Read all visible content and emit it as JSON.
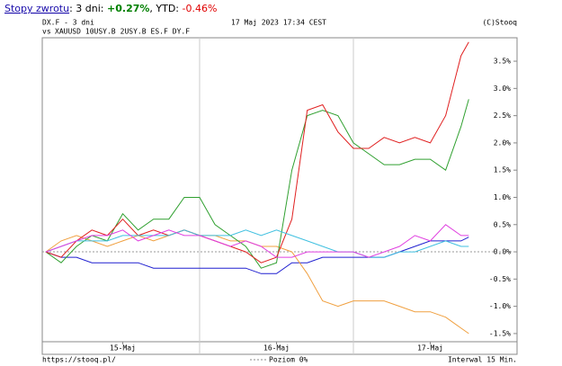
{
  "summary": {
    "link": "Stopy zwrotu",
    "period": ": 3 dni: ",
    "change": "+0.27%",
    "separator": ", YTD: ",
    "ytd": "-0.46%"
  },
  "chart_data": {
    "type": "line",
    "date": "17 Maj 2023 17:34 CEST",
    "source": "(C)Stooq",
    "versus": "vs",
    "footer_left": "https://stooq.pl/",
    "zero_line_label": "Poziom 0%",
    "footer_right": "Interwal 15 Min.",
    "x": [
      0,
      0.1,
      0.2,
      0.3,
      0.4,
      0.5,
      0.6,
      0.7,
      0.8,
      0.9,
      1.0,
      1.1,
      1.2,
      1.3,
      1.4,
      1.5,
      1.6,
      1.7,
      1.8,
      1.9,
      2.0,
      2.1,
      2.2,
      2.3,
      2.4,
      2.5,
      2.6,
      2.7,
      2.75
    ],
    "xlim": [
      -0.023,
      3.064
    ],
    "xticks": [
      {
        "value": 0.5,
        "label": "15-Maj"
      },
      {
        "value": 1.5,
        "label": "16-Maj"
      },
      {
        "value": 2.5,
        "label": "17-Maj"
      }
    ],
    "day_boundaries": [
      1,
      2
    ],
    "ylim": [
      -1.65,
      3.93
    ],
    "yticks": [
      {
        "value": 3.5,
        "label": "3.5%"
      },
      {
        "value": 3.0,
        "label": "3.0%"
      },
      {
        "value": 2.5,
        "label": "2.5%"
      },
      {
        "value": 2.0,
        "label": "2.0%"
      },
      {
        "value": 1.5,
        "label": "1.5%"
      },
      {
        "value": 1.0,
        "label": "1.0%"
      },
      {
        "value": 0.5,
        "label": "0.5%"
      },
      {
        "value": 0.0,
        "label": "0.0%"
      },
      {
        "value": -0.5,
        "label": "-0.5%"
      },
      {
        "value": -1.0,
        "label": "-1.0%"
      },
      {
        "value": -1.5,
        "label": "-1.5%"
      }
    ],
    "series": [
      {
        "name": "DX.F - 3 dni",
        "color": "#2020d0",
        "values": [
          0,
          -0.1,
          -0.1,
          -0.2,
          -0.2,
          -0.2,
          -0.2,
          -0.3,
          -0.3,
          -0.3,
          -0.3,
          -0.3,
          -0.3,
          -0.3,
          -0.4,
          -0.4,
          -0.2,
          -0.2,
          -0.1,
          -0.1,
          -0.1,
          -0.1,
          -0.1,
          0.0,
          0.1,
          0.2,
          0.2,
          0.2,
          0.27
        ]
      },
      {
        "name": "XAUUSD",
        "color": "#f0a040",
        "values": [
          0,
          0.2,
          0.3,
          0.2,
          0.1,
          0.2,
          0.3,
          0.2,
          0.3,
          0.4,
          0.3,
          0.3,
          0.2,
          0.2,
          0.1,
          0.1,
          0.0,
          -0.4,
          -0.9,
          -1.0,
          -0.9,
          -0.9,
          -0.9,
          -1.0,
          -1.1,
          -1.1,
          -1.2,
          -1.4,
          -1.5
        ]
      },
      {
        "name": "10USY.B",
        "color": "#30a030",
        "values": [
          0,
          -0.2,
          0.1,
          0.3,
          0.2,
          0.7,
          0.4,
          0.6,
          0.6,
          1.0,
          1.0,
          0.5,
          0.3,
          0.1,
          -0.3,
          -0.2,
          1.5,
          2.5,
          2.6,
          2.5,
          2.0,
          1.8,
          1.6,
          1.6,
          1.7,
          1.7,
          1.5,
          2.3,
          2.8
        ]
      },
      {
        "name": "2USY.B",
        "color": "#e02020",
        "values": [
          0,
          -0.1,
          0.2,
          0.4,
          0.3,
          0.6,
          0.3,
          0.4,
          0.3,
          0.4,
          0.3,
          0.2,
          0.1,
          0.0,
          -0.2,
          -0.1,
          0.6,
          2.6,
          2.7,
          2.2,
          1.9,
          1.9,
          2.1,
          2.0,
          2.1,
          2.0,
          2.5,
          3.6,
          3.85
        ]
      },
      {
        "name": "ES.F",
        "color": "#40c0e0",
        "values": [
          0,
          0.1,
          0.2,
          0.2,
          0.2,
          0.3,
          0.3,
          0.3,
          0.3,
          0.4,
          0.3,
          0.3,
          0.3,
          0.4,
          0.3,
          0.4,
          0.3,
          0.2,
          0.1,
          0.0,
          0.0,
          -0.1,
          -0.1,
          0.0,
          0.0,
          0.1,
          0.2,
          0.1,
          0.1
        ]
      },
      {
        "name": "DY.F",
        "color": "#e040e0",
        "values": [
          0,
          0.1,
          0.2,
          0.3,
          0.3,
          0.4,
          0.2,
          0.3,
          0.4,
          0.3,
          0.3,
          0.2,
          0.1,
          0.2,
          0.1,
          -0.1,
          -0.1,
          0.0,
          0.0,
          0.0,
          0.0,
          -0.1,
          0.0,
          0.1,
          0.3,
          0.2,
          0.5,
          0.3,
          0.3
        ]
      }
    ]
  }
}
